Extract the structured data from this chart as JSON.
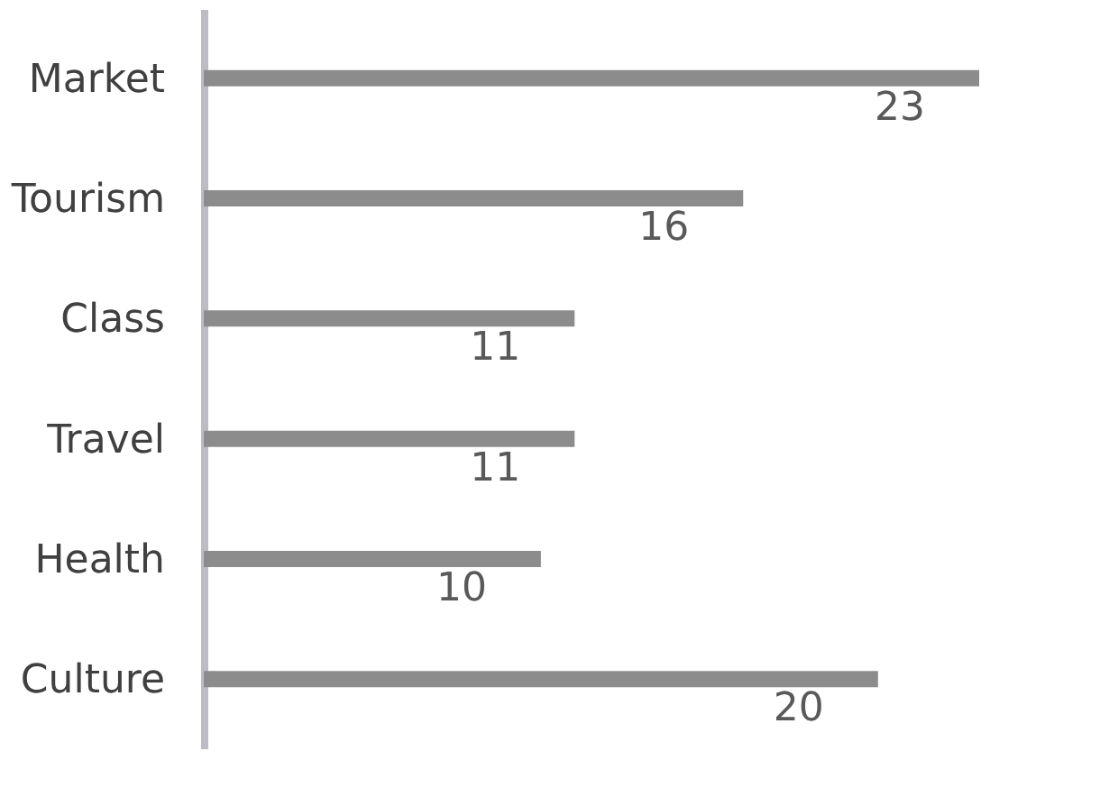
{
  "chart_data": {
    "type": "bar",
    "orientation": "horizontal",
    "categories": [
      "Market",
      "Tourism",
      "Class",
      "Travel",
      "Health",
      "Culture"
    ],
    "values": [
      23,
      16,
      11,
      11,
      10,
      20
    ],
    "color": "#8c8c8c",
    "data_labels": true
  }
}
